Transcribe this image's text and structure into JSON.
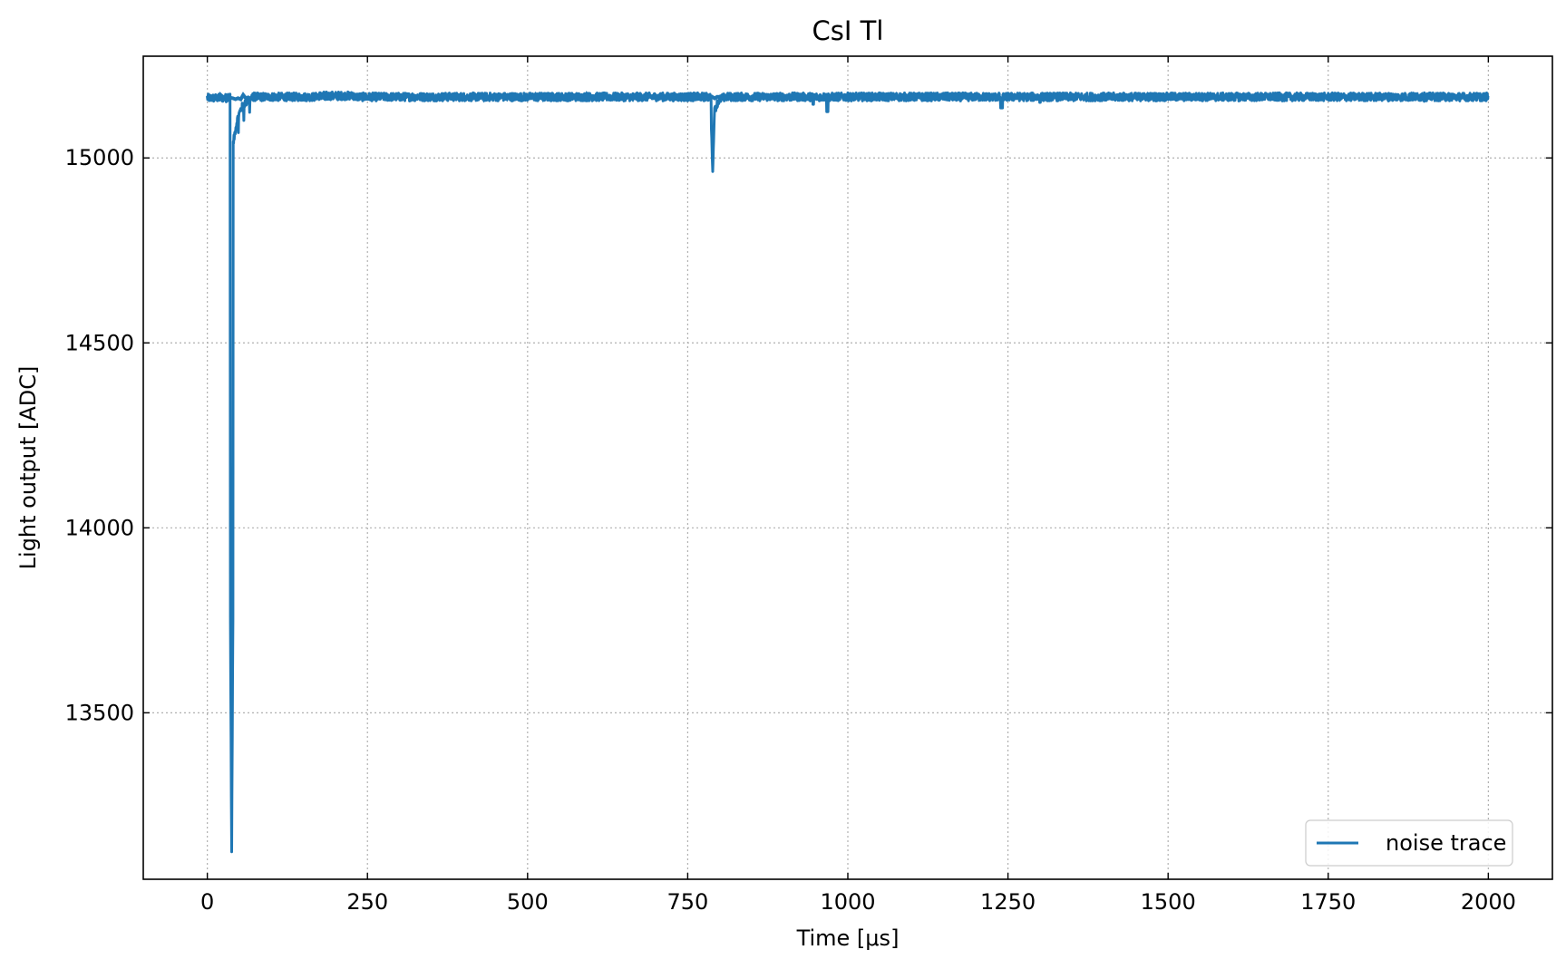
{
  "chart_data": {
    "type": "line",
    "title": "CsI Tl",
    "xlabel": "Time [μs]",
    "ylabel": "Light output [ADC]",
    "xlim": [
      -100,
      2100
    ],
    "ylim": [
      13050,
      15275
    ],
    "xticks": [
      0,
      250,
      500,
      750,
      1000,
      1250,
      1500,
      1750,
      2000
    ],
    "yticks": [
      13500,
      14000,
      14500,
      15000
    ],
    "grid": true,
    "legend_position": "bottom-right",
    "line_color": "#1f77b4",
    "series": [
      {
        "name": "noise trace",
        "baseline": 15165,
        "x_range": [
          0,
          2000
        ],
        "features": [
          {
            "x": 38,
            "y": 13115
          },
          {
            "x": 45,
            "y": 15060
          },
          {
            "x": 52,
            "y": 15100
          },
          {
            "x": 60,
            "y": 15140
          },
          {
            "x": 785,
            "y": 15150
          },
          {
            "x": 789,
            "y": 14960
          },
          {
            "x": 795,
            "y": 15130
          },
          {
            "x": 946,
            "y": 15145
          },
          {
            "x": 968,
            "y": 15125
          },
          {
            "x": 1240,
            "y": 15135
          },
          {
            "x": 1300,
            "y": 15150
          }
        ]
      }
    ]
  }
}
